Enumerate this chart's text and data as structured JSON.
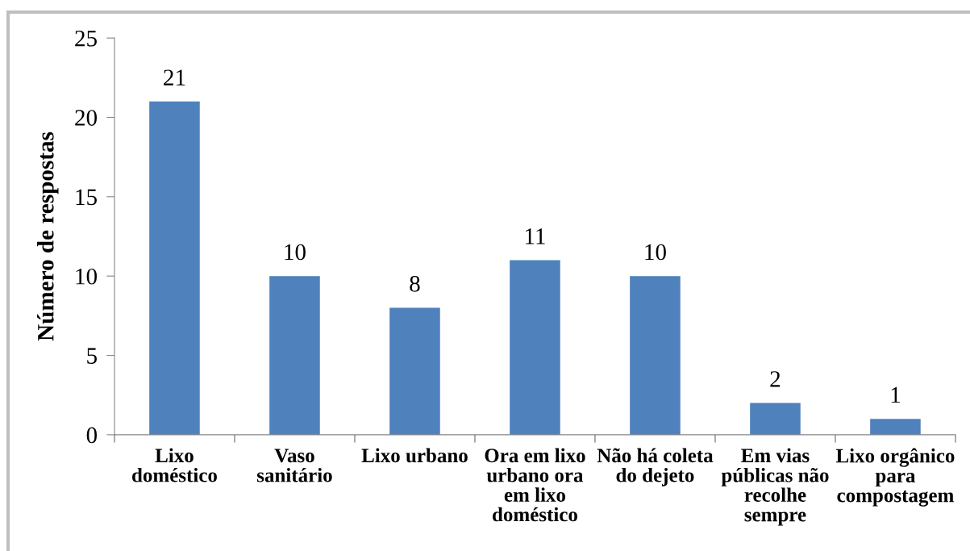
{
  "chart_data": {
    "type": "bar",
    "ylabel": "Número de respostas",
    "categories": [
      "Lixo\ndoméstico",
      "Vaso\nsanitário",
      "Lixo urbano",
      "Ora em lixo\nurbano ora\nem lixo\ndoméstico",
      "Não há coleta\ndo dejeto",
      "Em vias\npúblicas não\nrecolhe\nsempre",
      "Lixo orgânico\npara\ncompostagem"
    ],
    "values": [
      21,
      10,
      8,
      11,
      10,
      2,
      1
    ],
    "color": "#4f81bd",
    "ylim": [
      0,
      25
    ],
    "yticks": [
      0,
      5,
      10,
      15,
      20,
      25
    ],
    "grid": false,
    "legend": false,
    "data_labels": true
  }
}
